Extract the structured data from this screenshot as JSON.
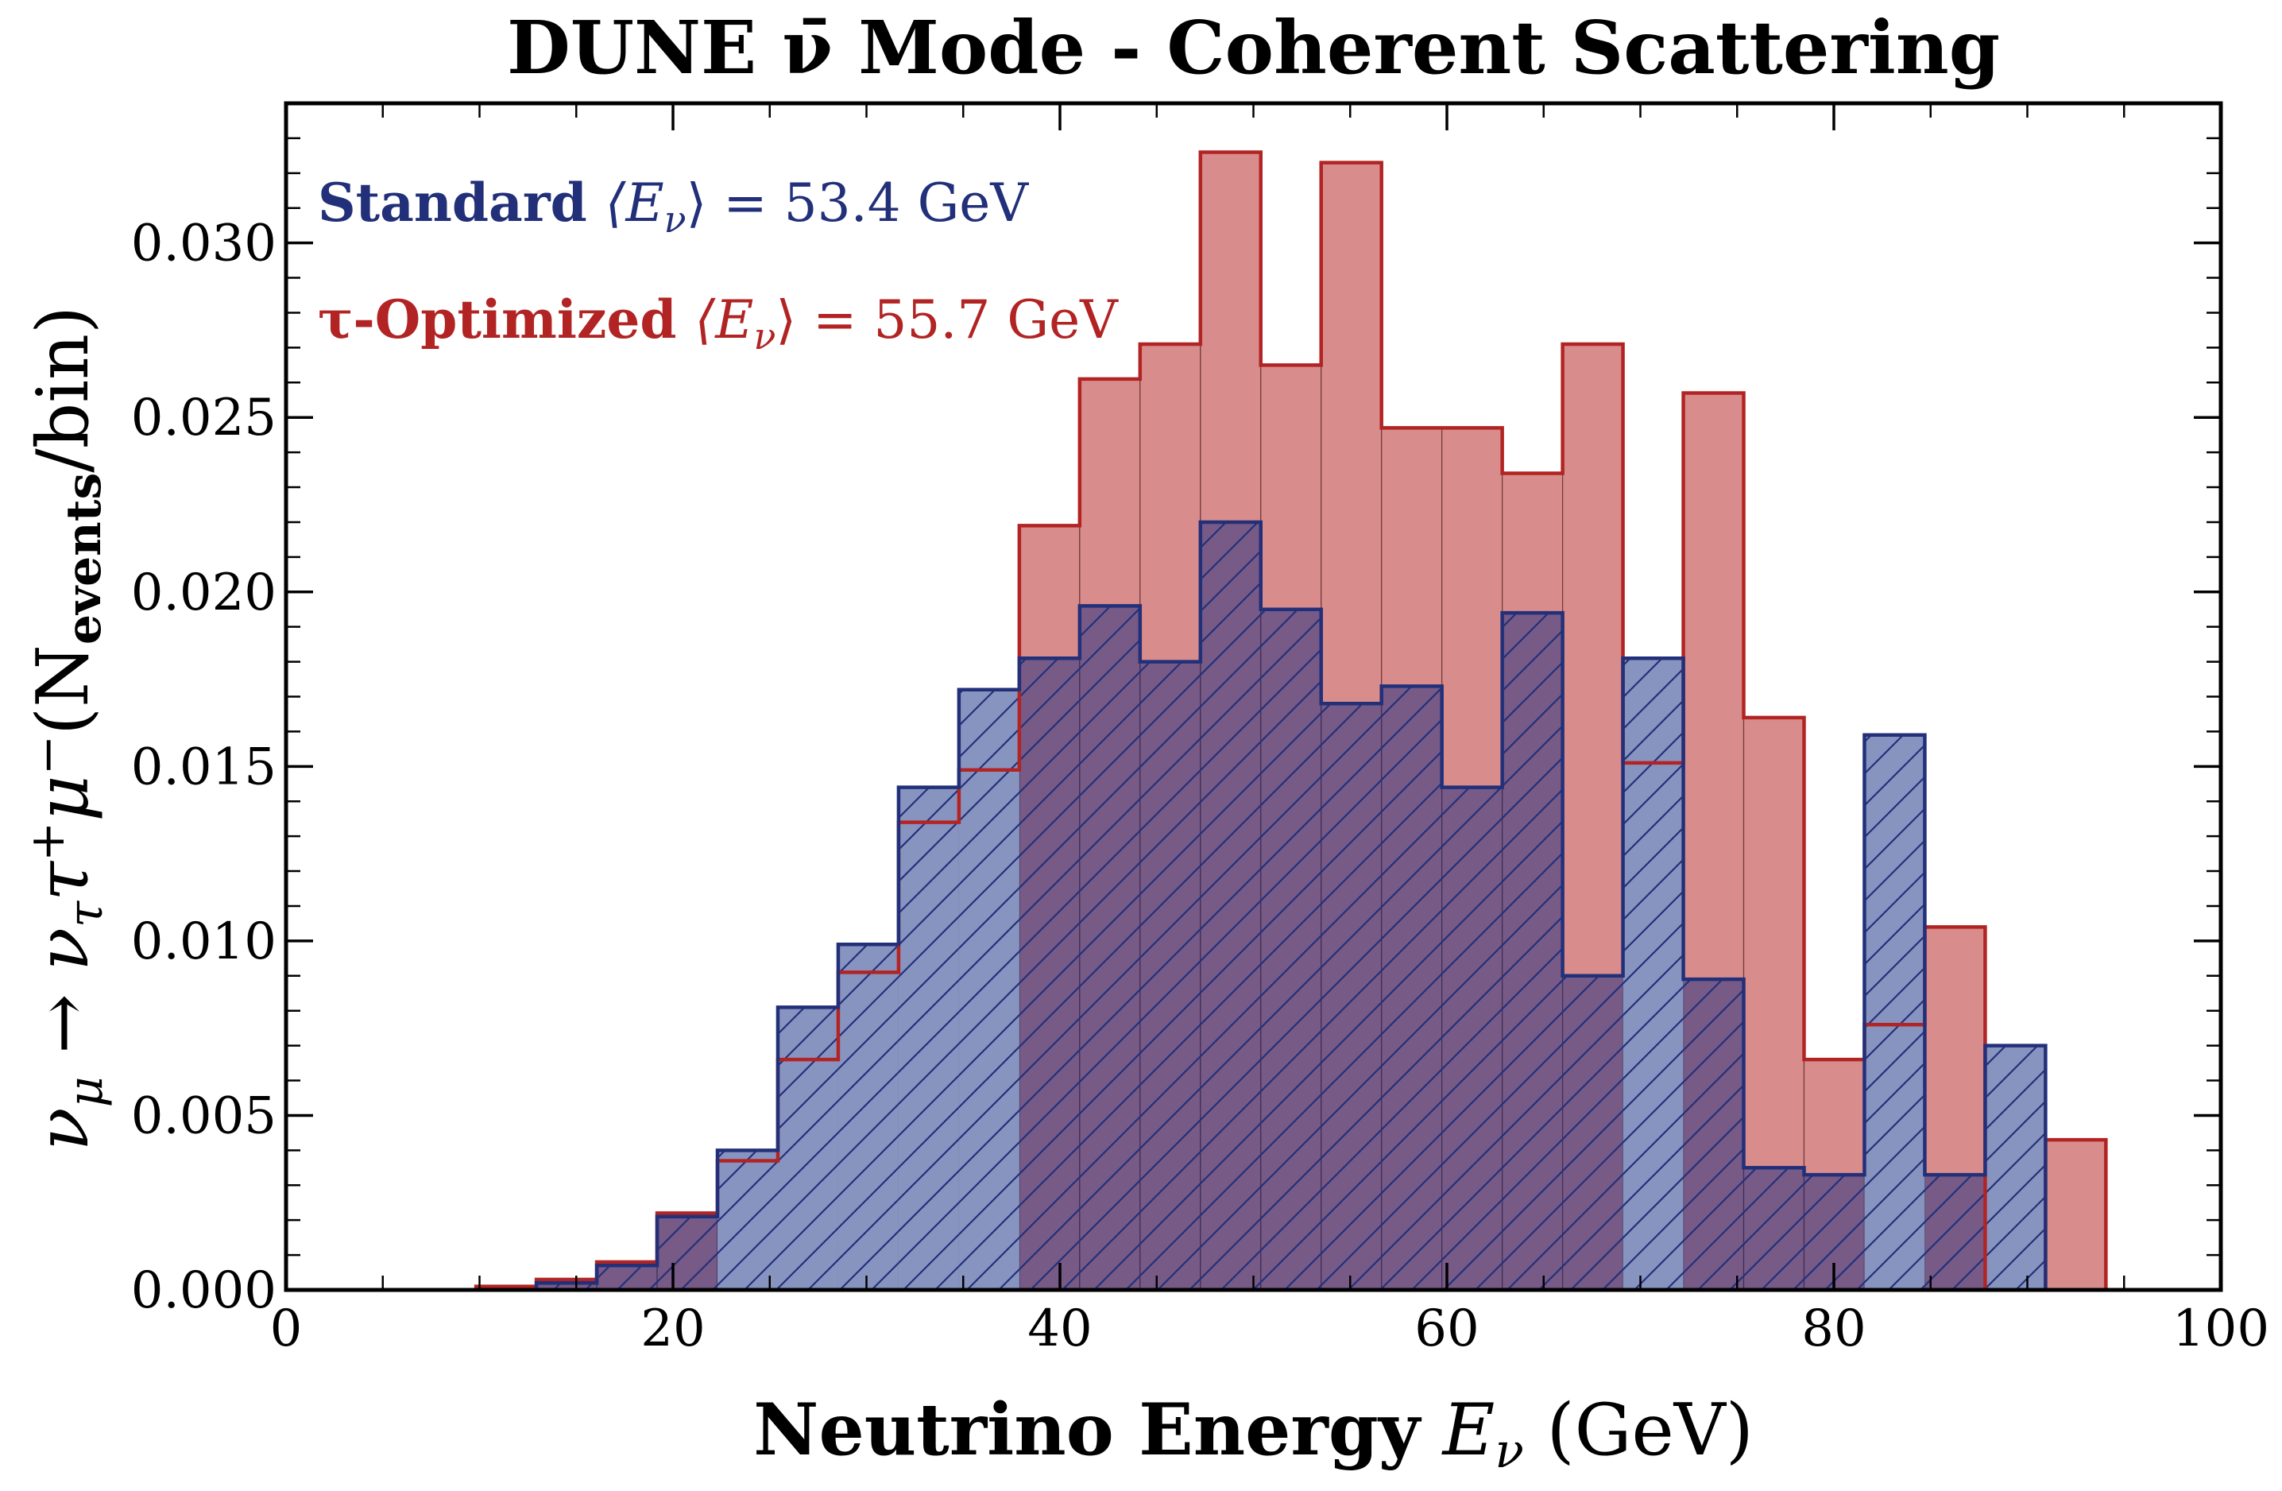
{
  "chart_data": {
    "type": "bar",
    "title": "DUNE ν̄ Mode - Coherent Scattering",
    "xlabel": {
      "bold": "Neutrino Energy",
      "rest": " E",
      "sub": "ν",
      "units": " (GeV)"
    },
    "ylabel": {
      "text": "ν",
      "parts": [
        "ν",
        "μ",
        " → ν",
        "τ",
        "τ",
        "+",
        "μ",
        "−",
        "(N",
        "events",
        "/bin)"
      ]
    },
    "xlim": [
      0,
      100
    ],
    "ylim": [
      0,
      0.034
    ],
    "xticks": [
      0,
      20,
      40,
      60,
      80,
      100
    ],
    "xtick_labels": [
      "0",
      "20",
      "40",
      "60",
      "80",
      "100"
    ],
    "yticks": [
      0.0,
      0.005,
      0.01,
      0.015,
      0.02,
      0.025,
      0.03
    ],
    "ytick_labels": [
      "0.000",
      "0.005",
      "0.010",
      "0.015",
      "0.020",
      "0.025",
      "0.030"
    ],
    "bin_edges": [
      6.7,
      9.82,
      12.94,
      16.06,
      19.18,
      22.3,
      25.42,
      28.54,
      31.66,
      34.78,
      37.9,
      41.02,
      44.14,
      47.26,
      50.38,
      53.5,
      56.62,
      59.74,
      62.86,
      65.98,
      69.1,
      72.22,
      75.34,
      78.46,
      81.58,
      84.7,
      87.82,
      90.94,
      94.06
    ],
    "series": [
      {
        "name": "Standard",
        "color": "#22307a",
        "fill": "#8894c0",
        "hatch": true,
        "mean_label": "⟨E",
        "mean_sub": "ν",
        "mean_value": "⟩ = 53.4 GeV",
        "values": [
          0.0,
          0.0,
          0.0002,
          0.0007,
          0.0021,
          0.004,
          0.0081,
          0.0099,
          0.0144,
          0.0172,
          0.0181,
          0.0196,
          0.018,
          0.022,
          0.0195,
          0.0168,
          0.0173,
          0.0144,
          0.0194,
          0.009,
          0.0181,
          0.0089,
          0.0035,
          0.0033,
          0.0159,
          0.0033,
          0.007,
          0.0,
          0.0
        ]
      },
      {
        "name": "τ-Optimized",
        "color": "#b22424",
        "fill": "#d98c8c",
        "hatch": false,
        "mean_label": "⟨E",
        "mean_sub": "ν",
        "mean_value": "⟩ = 55.7 GeV",
        "values": [
          0.0,
          0.0001,
          0.0003,
          0.0008,
          0.0022,
          0.0037,
          0.0066,
          0.0091,
          0.0134,
          0.0149,
          0.0219,
          0.0261,
          0.0271,
          0.0326,
          0.0265,
          0.0323,
          0.0247,
          0.0247,
          0.0234,
          0.0271,
          0.0151,
          0.0257,
          0.0164,
          0.0066,
          0.0076,
          0.0104,
          0.0,
          0.0043,
          0.0
        ]
      }
    ],
    "legend_placement": "top-left"
  }
}
